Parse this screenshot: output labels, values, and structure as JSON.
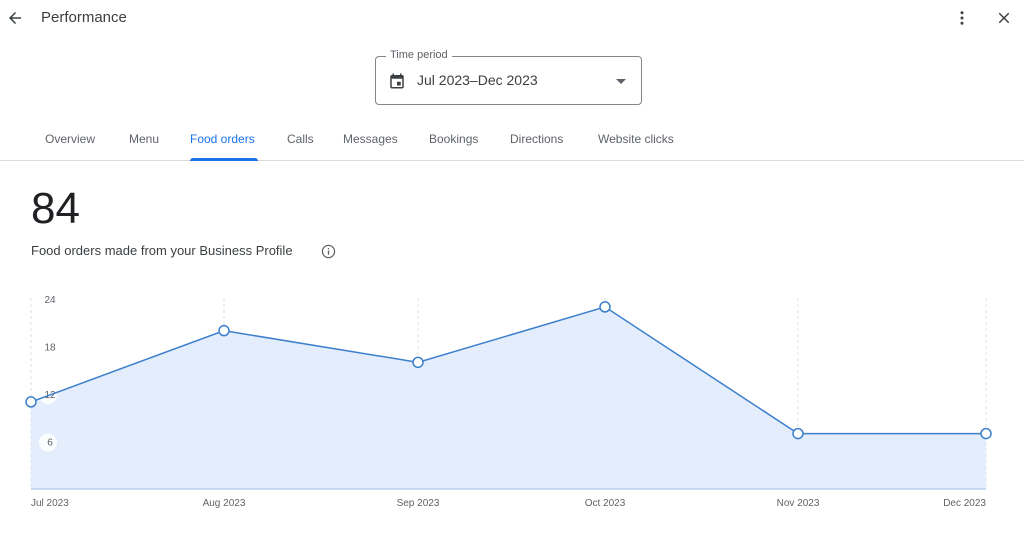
{
  "header": {
    "title": "Performance",
    "back_icon": "arrow-back-icon",
    "more_icon": "more-vert-icon",
    "close_icon": "close-icon"
  },
  "time_period": {
    "label": "Time period",
    "value": "Jul 2023–Dec 2023",
    "icon": "calendar-icon"
  },
  "tabs": [
    {
      "label": "Overview",
      "active": false
    },
    {
      "label": "Menu",
      "active": false
    },
    {
      "label": "Food orders",
      "active": true
    },
    {
      "label": "Calls",
      "active": false
    },
    {
      "label": "Messages",
      "active": false
    },
    {
      "label": "Bookings",
      "active": false
    },
    {
      "label": "Directions",
      "active": false
    },
    {
      "label": "Website clicks",
      "active": false
    }
  ],
  "metric": {
    "value": "84",
    "description": "Food orders made from your Business Profile"
  },
  "colors": {
    "accent": "#1a73e8",
    "line": "#3c7fcc",
    "area": "#e3edfc"
  },
  "chart_data": {
    "type": "area",
    "categories": [
      "Jul 2023",
      "Aug 2023",
      "Sep 2023",
      "Oct 2023",
      "Nov 2023",
      "Dec 2023"
    ],
    "values": [
      11,
      20,
      16,
      23,
      7,
      7
    ],
    "y_ticks": [
      "6",
      "12",
      "18",
      "24"
    ],
    "ylim": [
      0,
      24
    ],
    "grid": "vertical dashed"
  }
}
